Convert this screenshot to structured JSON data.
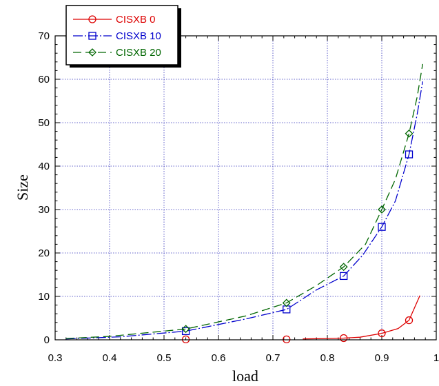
{
  "chart_data": {
    "type": "line",
    "xlabel": "load",
    "ylabel": "Size",
    "xlim": [
      0.3,
      1.0
    ],
    "ylim": [
      0,
      70
    ],
    "xticks": [
      0.3,
      0.4,
      0.5,
      0.6,
      0.7,
      0.8,
      0.9,
      1.0
    ],
    "xtick_labels": [
      "0.3",
      "0.4",
      "0.5",
      "0.6",
      "0.7",
      "0.8",
      "0.9",
      "1"
    ],
    "yticks": [
      0,
      10,
      20,
      30,
      40,
      50,
      60,
      70
    ],
    "ytick_labels": [
      "0",
      "10",
      "20",
      "30",
      "40",
      "50",
      "60",
      "70"
    ],
    "grid": true,
    "legend_position": "top-left",
    "series": [
      {
        "name": "CISXB 0",
        "color": "#dd0000",
        "dash": "solid",
        "marker": "circle",
        "markers": [
          [
            0.54,
            0.1
          ],
          [
            0.725,
            0.1
          ],
          [
            0.83,
            0.4
          ],
          [
            0.9,
            1.5
          ],
          [
            0.95,
            4.5
          ]
        ],
        "line": [
          [
            0.755,
            0.2
          ],
          [
            0.8,
            0.3
          ],
          [
            0.83,
            0.4
          ],
          [
            0.86,
            0.6
          ],
          [
            0.9,
            1.5
          ],
          [
            0.93,
            2.6
          ],
          [
            0.95,
            4.5
          ],
          [
            0.97,
            10.2
          ]
        ]
      },
      {
        "name": "CISXB 10",
        "color": "#0000cc",
        "dash": "long-dash",
        "marker": "square",
        "markers": [
          [
            0.54,
            2.0
          ],
          [
            0.725,
            7.0
          ],
          [
            0.83,
            14.7
          ],
          [
            0.9,
            26.0
          ],
          [
            0.95,
            42.7
          ]
        ],
        "line": [
          [
            0.32,
            0.2
          ],
          [
            0.42,
            0.7
          ],
          [
            0.54,
            2.0
          ],
          [
            0.65,
            4.8
          ],
          [
            0.725,
            7.0
          ],
          [
            0.78,
            11.5
          ],
          [
            0.83,
            14.7
          ],
          [
            0.865,
            19.5
          ],
          [
            0.9,
            26.0
          ],
          [
            0.925,
            32.0
          ],
          [
            0.95,
            42.7
          ],
          [
            0.965,
            52.0
          ],
          [
            0.975,
            59.5
          ]
        ]
      },
      {
        "name": "CISXB 20",
        "color": "#006600",
        "dash": "dash",
        "marker": "diamond",
        "markers": [
          [
            0.54,
            2.5
          ],
          [
            0.725,
            8.5
          ],
          [
            0.83,
            16.8
          ],
          [
            0.9,
            30.0
          ],
          [
            0.95,
            47.5
          ]
        ],
        "line": [
          [
            0.32,
            0.3
          ],
          [
            0.4,
            0.8
          ],
          [
            0.54,
            2.5
          ],
          [
            0.65,
            5.5
          ],
          [
            0.725,
            8.5
          ],
          [
            0.78,
            12.5
          ],
          [
            0.83,
            16.8
          ],
          [
            0.87,
            22.0
          ],
          [
            0.9,
            30.0
          ],
          [
            0.925,
            37.0
          ],
          [
            0.95,
            47.5
          ],
          [
            0.965,
            56.0
          ],
          [
            0.975,
            63.5
          ]
        ]
      }
    ]
  }
}
